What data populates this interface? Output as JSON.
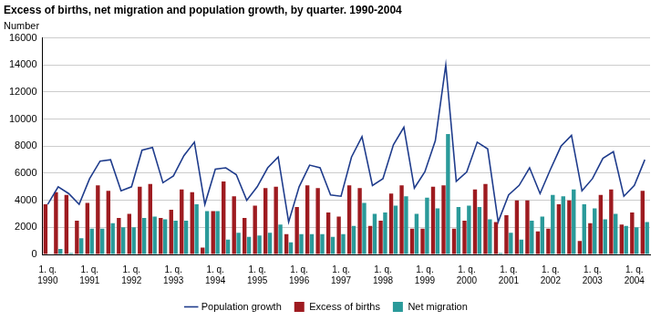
{
  "chart_data": {
    "type": "bar",
    "title": "Excess of births, net migration and population growth, by quarter. 1990-2004",
    "y_label": "Number",
    "categories": [
      "1. q. 1990",
      null,
      null,
      null,
      "1. q. 1991",
      null,
      null,
      null,
      "1. q. 1992",
      null,
      null,
      null,
      "1. q. 1993",
      null,
      null,
      null,
      "1. q. 1994",
      null,
      null,
      null,
      "1. q. 1995",
      null,
      null,
      null,
      "1. q. 1996",
      null,
      null,
      null,
      "1. q. 1997",
      null,
      null,
      null,
      "1. q. 1998",
      null,
      null,
      null,
      "1. q. 1999",
      null,
      null,
      null,
      "1. q. 2000",
      null,
      null,
      null,
      "1. q. 2001",
      null,
      null,
      null,
      "1. q. 2002",
      null,
      null,
      null,
      "1. q. 2003",
      null,
      null,
      null,
      "1. q. 2004",
      null
    ],
    "series": [
      {
        "name": "Excess of births",
        "type": "bar",
        "color": "#9e1b20",
        "values": [
          3700,
          4600,
          4400,
          2500,
          3800,
          5100,
          4700,
          2700,
          3000,
          5000,
          5200,
          2700,
          3300,
          4800,
          4600,
          500,
          3200,
          5400,
          4300,
          2700,
          3600,
          4900,
          5000,
          1500,
          3500,
          5100,
          4900,
          3100,
          2800,
          5100,
          4900,
          2100,
          2500,
          4500,
          5100,
          1900,
          1900,
          5000,
          5100,
          1900,
          2500,
          4800,
          5200,
          2400,
          2900,
          4000,
          4000,
          1700,
          1900,
          3700,
          4000,
          1000,
          2300,
          4400,
          4800,
          2200,
          3100,
          4700
        ]
      },
      {
        "name": "Net migration",
        "type": "bar",
        "color": "#2a9a9a",
        "values": [
          0,
          400,
          100,
          1200,
          1900,
          1900,
          2300,
          2000,
          2000,
          2700,
          2800,
          2600,
          2500,
          2500,
          3700,
          3200,
          3200,
          1100,
          1600,
          1300,
          1400,
          1600,
          2200,
          900,
          1500,
          1500,
          1500,
          1300,
          1500,
          2100,
          3800,
          3000,
          3100,
          3600,
          4300,
          3000,
          4200,
          3400,
          8900,
          3500,
          3600,
          3500,
          2600,
          100,
          1600,
          1100,
          2500,
          2800,
          4400,
          4300,
          4800,
          3700,
          3400,
          2600,
          3000,
          2100,
          2000,
          2400
        ]
      },
      {
        "name": "Population growth",
        "type": "line",
        "color": "#1f3c8c",
        "values": [
          3700,
          5000,
          4500,
          3700,
          5600,
          6900,
          7000,
          4700,
          5000,
          7700,
          7900,
          5300,
          5800,
          7300,
          8300,
          3700,
          6300,
          6400,
          5900,
          4000,
          5000,
          6400,
          7200,
          2400,
          5000,
          6600,
          6400,
          4400,
          4300,
          7200,
          8700,
          5100,
          5600,
          8100,
          9400,
          4900,
          6100,
          8400,
          14000,
          5400,
          6100,
          8300,
          7800,
          2400,
          4400,
          5100,
          6400,
          4500,
          6300,
          8000,
          8800,
          4700,
          5600,
          7100,
          7600,
          4300,
          5100,
          7000
        ]
      }
    ],
    "ylim": [
      0,
      16000
    ],
    "yticks": [
      0,
      2000,
      4000,
      6000,
      8000,
      10000,
      12000,
      14000,
      16000
    ],
    "grid": true,
    "legend": "bottom"
  }
}
